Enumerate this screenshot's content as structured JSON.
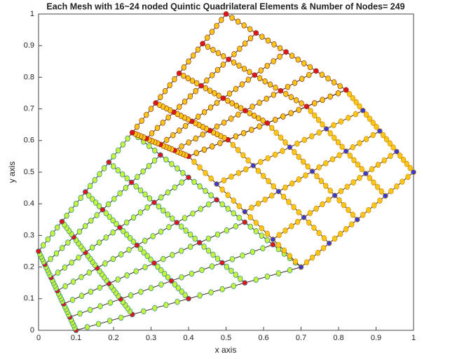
{
  "chart_data": {
    "type": "mesh",
    "title": "Each Mesh with 16~24 noded Quintic Quadrilateral Elements & Number of Nodes= 249",
    "xlabel": "x axis",
    "ylabel": "y axis",
    "xlim": [
      0,
      1
    ],
    "ylim": [
      0,
      1
    ],
    "xticks": [
      0,
      0.1,
      0.2,
      0.3,
      0.4,
      0.5,
      0.6,
      0.7,
      0.8,
      0.9,
      1
    ],
    "yticks": [
      0,
      0.1,
      0.2,
      0.3,
      0.4,
      0.5,
      0.6,
      0.7,
      0.8,
      0.9,
      1
    ],
    "line_color": "#3b1e1e",
    "patches": [
      {
        "corners": [
          [
            0.1,
            0
          ],
          [
            0.7,
            0.2
          ],
          [
            0.25,
            0.625
          ],
          [
            0,
            0.25
          ]
        ],
        "divisions": [
          4,
          6
        ],
        "node_color": "#c9f23a",
        "node_edge": "#1f8a8a",
        "corner_color": "#e0141e"
      },
      {
        "corners": [
          [
            0.7,
            0.2
          ],
          [
            1,
            0.5
          ],
          [
            0.82,
            0.76
          ],
          [
            0.4,
            0.55
          ]
        ],
        "divisions": [
          4,
          4
        ],
        "node_color": "#ffc61a",
        "node_edge": "#c88a00",
        "corner_color": "#3a3ad0"
      },
      {
        "corners": [
          [
            0.4,
            0.55
          ],
          [
            0.82,
            0.76
          ],
          [
            0.5,
            1
          ],
          [
            0.25,
            0.625
          ]
        ],
        "divisions": [
          4,
          4
        ],
        "node_color": "#ffc61a",
        "node_edge": "#8a3a10",
        "corner_color": "#e0141e"
      }
    ]
  }
}
